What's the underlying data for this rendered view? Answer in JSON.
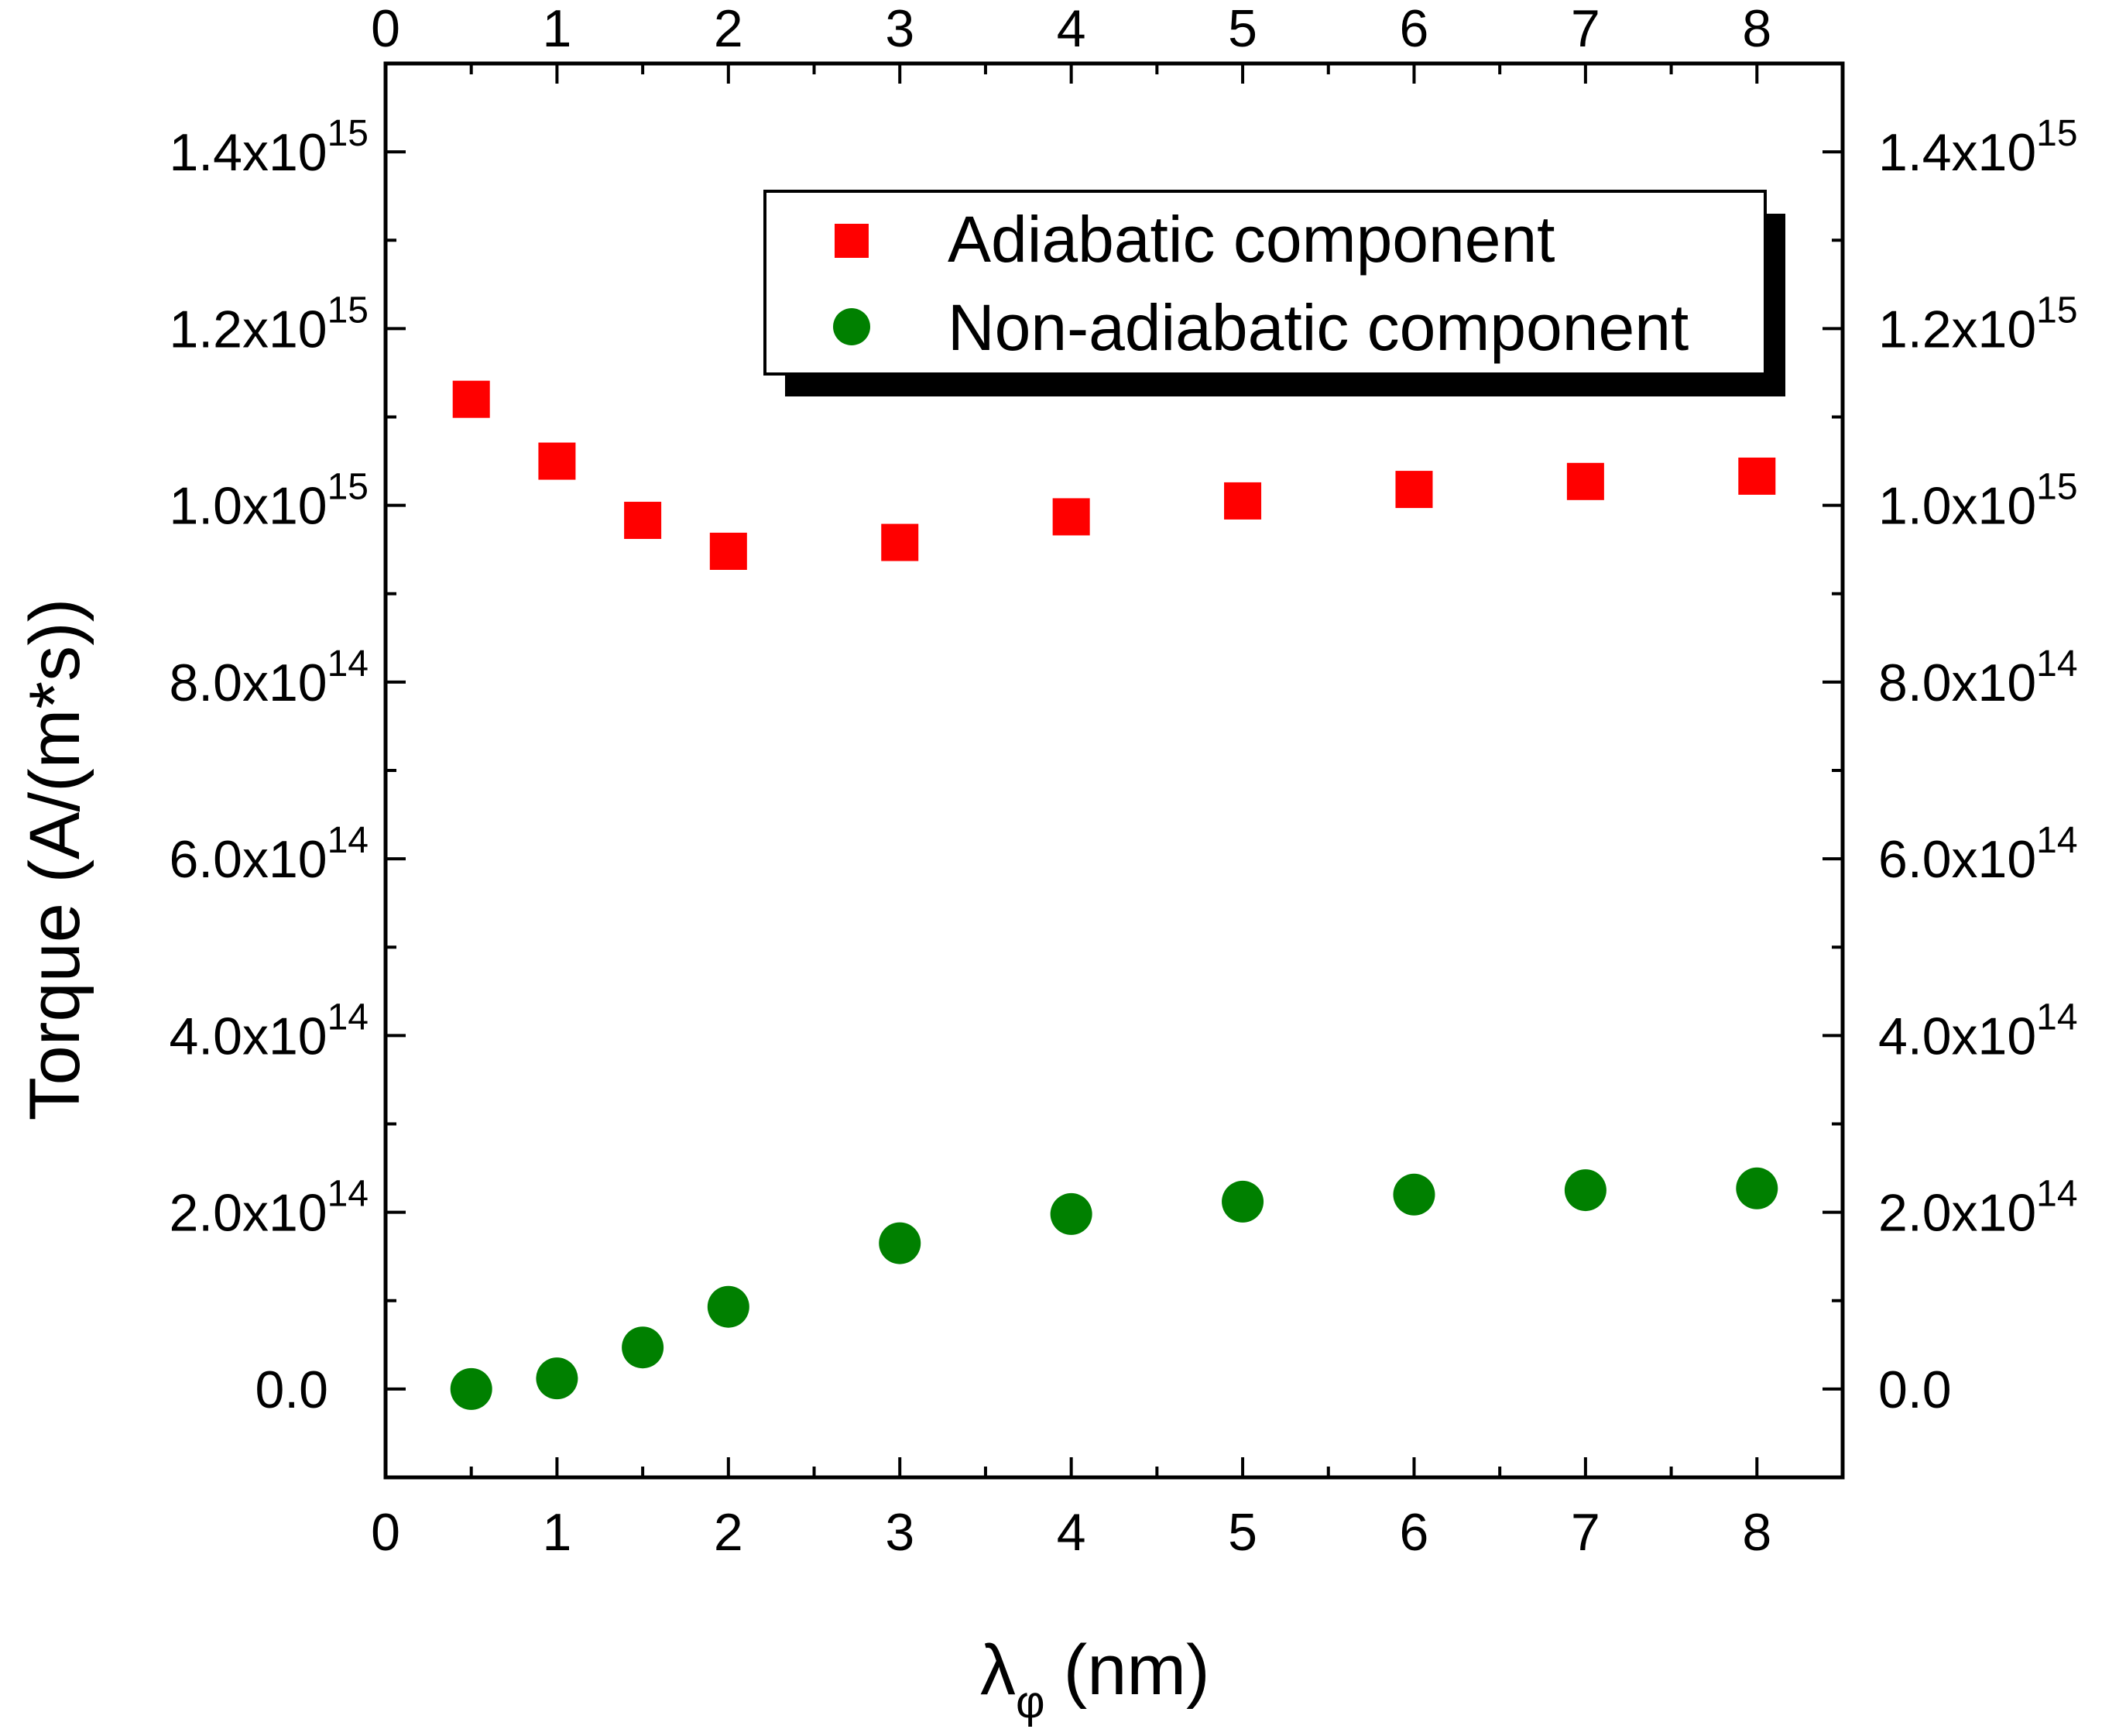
{
  "chart_data": {
    "type": "scatter",
    "title": "",
    "xlabel": "λ",
    "xlabel_sub": "φ",
    "xlabel_unit": "(nm)",
    "ylabel": "Torque (A/(m*s))",
    "xlim": [
      0,
      8.5
    ],
    "ylim": [
      -100000000000000.0,
      1500000000000000.0
    ],
    "x_ticks": [
      0,
      1,
      2,
      3,
      4,
      5,
      6,
      7,
      8
    ],
    "x_tick_labels": [
      "0",
      "1",
      "2",
      "3",
      "4",
      "5",
      "6",
      "7",
      "8"
    ],
    "top_x_tick_labels": [
      "0",
      "1",
      "2",
      "3",
      "4",
      "5",
      "6",
      "7",
      "8"
    ],
    "y_ticks": [
      0,
      200000000000000.0,
      400000000000000.0,
      600000000000000.0,
      800000000000000.0,
      1000000000000000.0,
      1200000000000000.0,
      1400000000000000.0
    ],
    "y_tick_labels": [
      {
        "base": "0.0",
        "exp": ""
      },
      {
        "base": "2.0x10",
        "exp": "14"
      },
      {
        "base": "4.0x10",
        "exp": "14"
      },
      {
        "base": "6.0x10",
        "exp": "14"
      },
      {
        "base": "8.0x10",
        "exp": "14"
      },
      {
        "base": "1.0x10",
        "exp": "15"
      },
      {
        "base": "1.2x10",
        "exp": "15"
      },
      {
        "base": "1.4x10",
        "exp": "15"
      }
    ],
    "legend_position": "top-right",
    "series": [
      {
        "name": "Adiabatic component",
        "marker": "square",
        "color": "#ff0000",
        "x": [
          0.5,
          1,
          1.5,
          2,
          3,
          4,
          5,
          6,
          7,
          8
        ],
        "y": [
          1120000000000000.0,
          1050000000000000.0,
          983000000000000.0,
          948000000000000.0,
          958000000000000.0,
          987000000000000.0,
          1005000000000000.0,
          1018000000000000.0,
          1027000000000000.0,
          1033000000000000.0
        ]
      },
      {
        "name": "Non-adiabatic component",
        "marker": "circle",
        "color": "#008000",
        "x": [
          0.5,
          1,
          1.5,
          2,
          3,
          4,
          5,
          6,
          7,
          8
        ],
        "y": [
          0.0,
          12000000000000.0,
          47000000000000.0,
          93000000000000.0,
          165000000000000.0,
          198000000000000.0,
          212000000000000.0,
          220000000000000.0,
          225000000000000.0,
          227000000000000.0
        ]
      }
    ]
  }
}
